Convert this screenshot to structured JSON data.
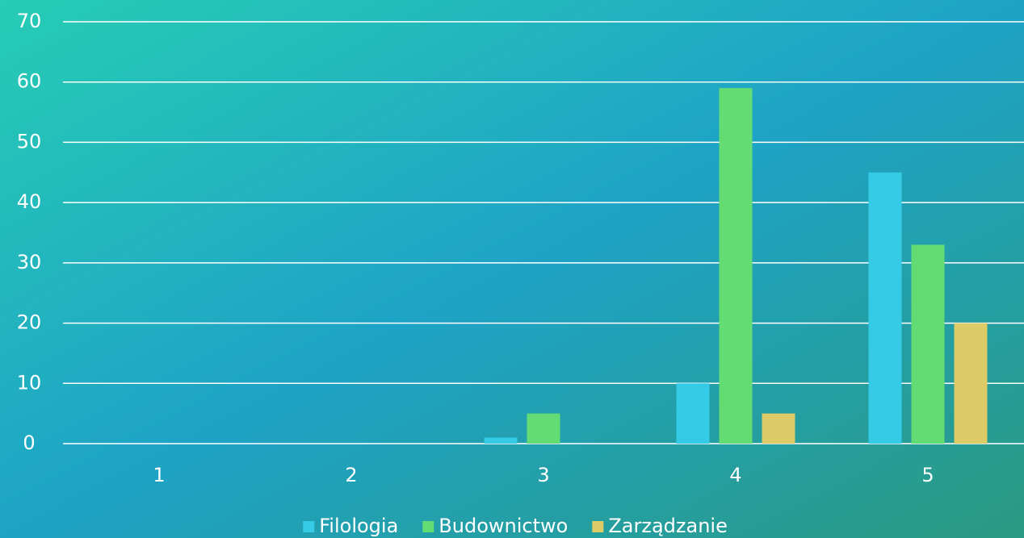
{
  "chart_data": {
    "type": "bar",
    "categories": [
      "1",
      "2",
      "3",
      "4",
      "5"
    ],
    "series": [
      {
        "name": "Filologia",
        "color": "#35cbe6",
        "values": [
          0,
          0,
          1,
          10,
          45
        ]
      },
      {
        "name": "Budownictwo",
        "color": "#64dc74",
        "values": [
          0,
          0,
          5,
          59,
          33
        ]
      },
      {
        "name": "Zarządzanie",
        "color": "#dccb66",
        "values": [
          0,
          0,
          0,
          5,
          20
        ]
      }
    ],
    "ylim": [
      0,
      70
    ],
    "yticks": [
      0,
      10,
      20,
      30,
      40,
      50,
      60,
      70
    ],
    "grid": true,
    "legend": "bottom"
  }
}
